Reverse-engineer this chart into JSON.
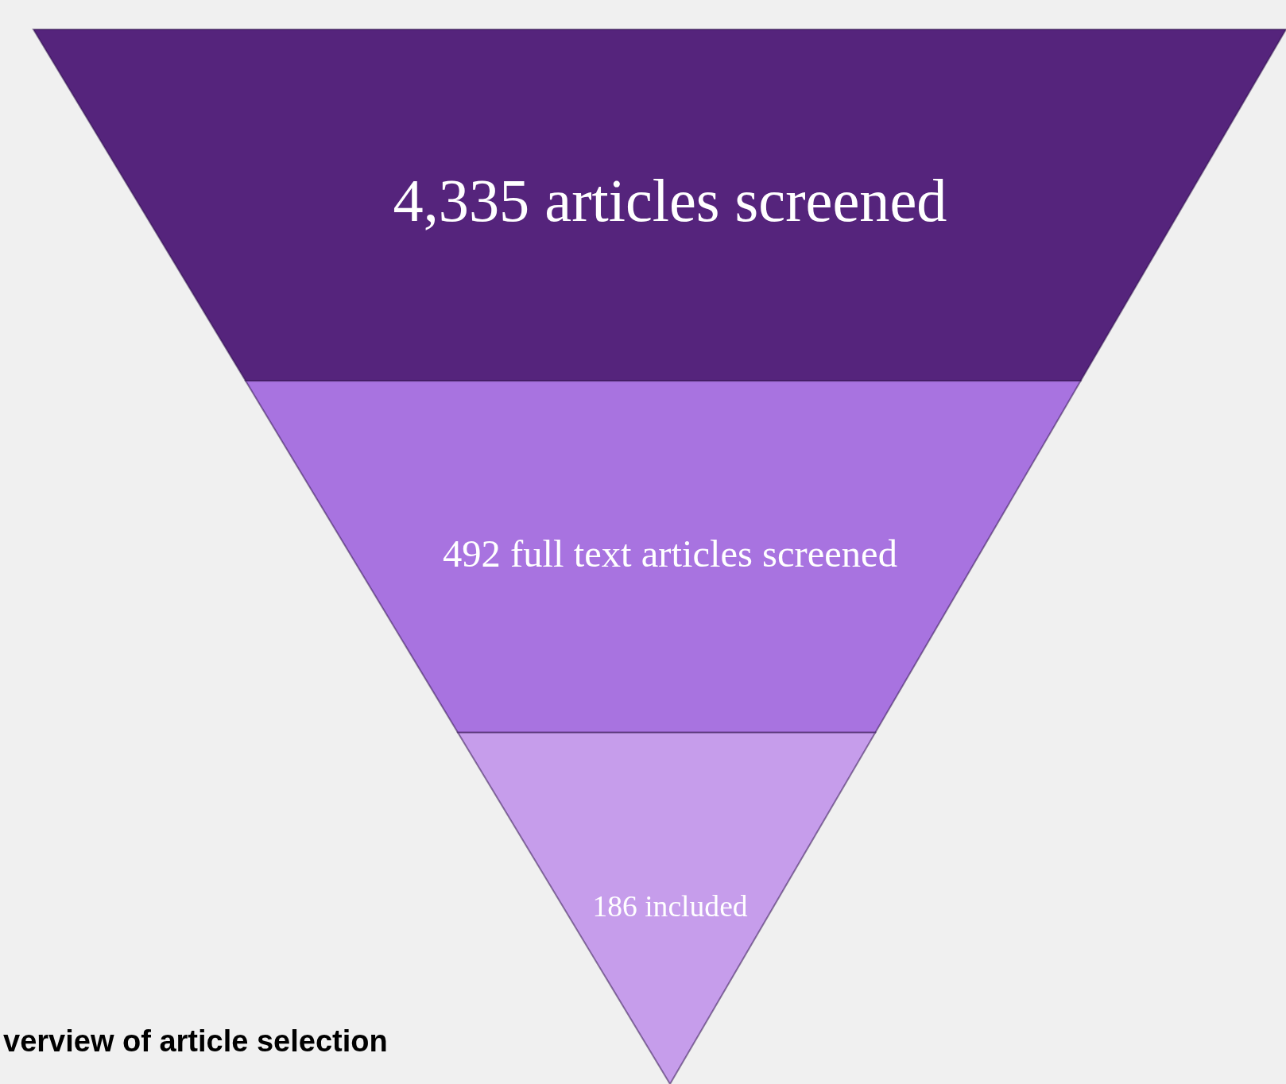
{
  "chart_data": {
    "type": "other",
    "title": "verview of article selection",
    "categories": [
      "articles screened",
      "full text articles screened",
      "included"
    ],
    "values": [
      4335,
      492,
      186
    ],
    "value_labels": [
      "4,335",
      "492",
      "186"
    ],
    "colors": [
      "#55247c",
      "#a873e0",
      "#c69deb"
    ]
  }
}
